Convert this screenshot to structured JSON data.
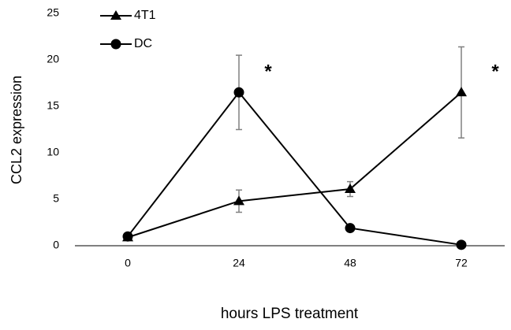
{
  "chart_data": {
    "type": "line",
    "ylabel": "CCL2 expression",
    "xlabel": "hours LPS treatment",
    "categories": [
      "0",
      "24",
      "48",
      "72"
    ],
    "series": [
      {
        "name": "4T1",
        "color": "#000000",
        "marker": "triangle",
        "values": [
          0.9,
          4.8,
          6.1,
          16.5
        ],
        "errors": [
          0.2,
          1.2,
          0.8,
          4.9
        ]
      },
      {
        "name": "DC",
        "color": "#000000",
        "marker": "circle",
        "values": [
          1,
          16.5,
          1.9,
          0.1
        ],
        "errors": [
          0.2,
          4,
          0.2,
          0.1
        ]
      }
    ],
    "ylim": [
      0,
      25
    ],
    "yticks": [
      0,
      5,
      10,
      15,
      20,
      25
    ],
    "grid": false,
    "legend": "top-left",
    "annotations": [
      "*",
      "*"
    ]
  }
}
